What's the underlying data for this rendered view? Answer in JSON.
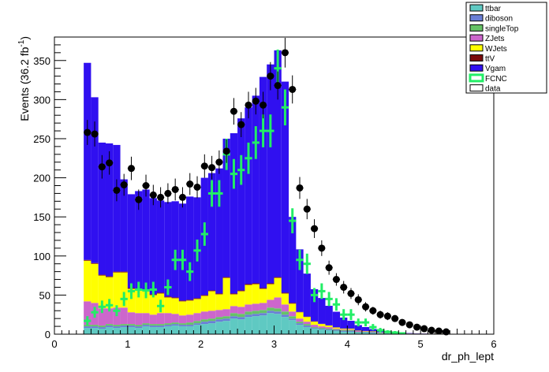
{
  "chart_data": {
    "type": "bar",
    "stacked": true,
    "xlabel": "dr_ph_lept",
    "ylabel": "Events (36.2 fb",
    "ylabel_sup": "-1",
    "ylabel_close": ")",
    "xlim": [
      0,
      6
    ],
    "ylim": [
      0,
      380
    ],
    "xticks": [
      0,
      1,
      2,
      3,
      4,
      5,
      6
    ],
    "yticks": [
      0,
      50,
      100,
      150,
      200,
      250,
      300,
      350
    ],
    "bin_width": 0.1,
    "x": [
      0.45,
      0.55,
      0.65,
      0.75,
      0.85,
      0.95,
      1.05,
      1.15,
      1.25,
      1.35,
      1.45,
      1.55,
      1.65,
      1.75,
      1.85,
      1.95,
      2.05,
      2.15,
      2.25,
      2.35,
      2.45,
      2.55,
      2.65,
      2.75,
      2.85,
      2.95,
      3.05,
      3.15,
      3.25,
      3.35,
      3.45,
      3.55,
      3.65,
      3.75,
      3.85,
      3.95,
      4.05,
      4.15,
      4.25,
      4.35,
      4.45,
      4.55,
      4.65,
      4.75,
      4.85,
      4.95,
      5.05,
      5.15,
      5.25,
      5.35
    ],
    "legend_position": "top-right",
    "series": [
      {
        "name": "ttbar",
        "color": "#5fc9c2",
        "values": [
          8,
          8,
          7,
          9,
          8,
          9,
          9,
          8,
          10,
          9,
          9,
          10,
          11,
          10,
          10,
          12,
          13,
          14,
          16,
          17,
          20,
          19,
          22,
          23,
          24,
          27,
          26,
          22,
          18,
          12,
          9,
          7,
          6,
          5,
          4,
          3,
          3,
          2,
          2,
          1.5,
          1,
          1,
          0.8,
          0.6,
          0.5,
          0.4,
          0.3,
          0.2,
          0.2,
          0.1
        ]
      },
      {
        "name": "diboson",
        "color": "#6a7fd6",
        "values": [
          2,
          2,
          2,
          2,
          2,
          2,
          2,
          2,
          2,
          2,
          2,
          2,
          2,
          2,
          2,
          2,
          3,
          3,
          3,
          3,
          3,
          3,
          3,
          3,
          3,
          3,
          3,
          3,
          2,
          2,
          2,
          1,
          1,
          1,
          1,
          1,
          1,
          0.5,
          0.5,
          0.5,
          0.3,
          0.3,
          0.2,
          0.2,
          0.1,
          0.1,
          0.1,
          0.1,
          0.1,
          0.1
        ]
      },
      {
        "name": "singleTop",
        "color": "#66c266",
        "values": [
          2,
          2,
          2,
          2,
          2,
          2,
          2,
          2,
          2,
          2,
          2,
          2,
          2,
          2,
          3,
          3,
          3,
          3,
          3,
          3,
          4,
          4,
          4,
          4,
          4,
          4,
          4,
          4,
          3,
          2,
          2,
          1,
          1,
          1,
          1,
          1,
          1,
          0.5,
          0.5,
          0.5,
          0.3,
          0.3,
          0.2,
          0.2,
          0.1,
          0.1,
          0.1,
          0.1,
          0.1,
          0.1
        ]
      },
      {
        "name": "ZJets",
        "color": "#cc66cc",
        "values": [
          30,
          28,
          22,
          20,
          22,
          21,
          15,
          15,
          13,
          12,
          14,
          13,
          11,
          10,
          10,
          10,
          10,
          10,
          9,
          9,
          9,
          9,
          9,
          9,
          9,
          10,
          14,
          9,
          6,
          4,
          3,
          3,
          2,
          2,
          1,
          1,
          1,
          1,
          0.5,
          0.5,
          0.3,
          0.3,
          0.2,
          0.2,
          0.1,
          0.1,
          0.1,
          0.1,
          0.1,
          0.1
        ]
      },
      {
        "name": "WJets",
        "color": "#ffff00",
        "values": [
          52,
          50,
          42,
          40,
          45,
          45,
          30,
          30,
          28,
          25,
          25,
          20,
          20,
          18,
          18,
          18,
          20,
          25,
          20,
          40,
          15,
          20,
          25,
          25,
          18,
          20,
          25,
          14,
          10,
          8,
          6,
          4,
          3,
          2,
          1.5,
          1,
          1,
          0.5,
          0.5,
          0.5,
          0.3,
          0.3,
          0.2,
          0.2,
          0.1,
          0.1,
          0.1,
          0.1,
          0.1,
          0.1
        ]
      },
      {
        "name": "ttV",
        "color": "#7a0a0a",
        "values": [
          1,
          1,
          1,
          1,
          1,
          1,
          1,
          1,
          1,
          1,
          1,
          1,
          1,
          1,
          1,
          1,
          1,
          1,
          1,
          1,
          1,
          1,
          1,
          1,
          1,
          1,
          1,
          1,
          1,
          0.5,
          0.5,
          0.5,
          0.3,
          0.3,
          0.2,
          0.2,
          0.1,
          0.1,
          0.1,
          0.1,
          0.1,
          0.1,
          0,
          0,
          0,
          0,
          0,
          0,
          0,
          0
        ]
      },
      {
        "name": "Vgam",
        "color": "#3010f0",
        "values": [
          252,
          212,
          169,
          170,
          162,
          118,
          120,
          125,
          129,
          123,
          118,
          121,
          123,
          124,
          132,
          129,
          150,
          150,
          160,
          177,
          205,
          220,
          226,
          240,
          270,
          280,
          290,
          270,
          110,
          80,
          55,
          41,
          33,
          25,
          20,
          14,
          10,
          7,
          5,
          3,
          2,
          1.5,
          1,
          0.8,
          0.5,
          0.3,
          0.2,
          0.1,
          0,
          0
        ]
      }
    ],
    "data": {
      "name": "data",
      "values": [
        258,
        256,
        214,
        219,
        184,
        191,
        212,
        172,
        190,
        178,
        175,
        180,
        185,
        175,
        192,
        188,
        215,
        213,
        220,
        234,
        285,
        268,
        293,
        298,
        293,
        330,
        318,
        360,
        313,
        187,
        160,
        135,
        110,
        85,
        70,
        60,
        52,
        44,
        35,
        30,
        25,
        23,
        20,
        15,
        12,
        9,
        7,
        5,
        4,
        3
      ],
      "errors": [
        16,
        16,
        15,
        15,
        14,
        14,
        15,
        13,
        14,
        13,
        13,
        13,
        14,
        13,
        14,
        14,
        15,
        15,
        15,
        15,
        17,
        16,
        17,
        17,
        17,
        18,
        18,
        19,
        18,
        14,
        13,
        12,
        10,
        9,
        8,
        8,
        7,
        7,
        6,
        5,
        5,
        5,
        4,
        4,
        3,
        3,
        3,
        2,
        2,
        2
      ]
    },
    "fcnc": {
      "name": "FCNC",
      "color": "#22ee66",
      "x": [
        0.45,
        0.55,
        0.65,
        0.75,
        0.85,
        0.95,
        1.05,
        1.15,
        1.25,
        1.35,
        1.45,
        1.55,
        1.65,
        1.75,
        1.85,
        1.95,
        2.05,
        2.15,
        2.25,
        2.35,
        2.45,
        2.55,
        2.65,
        2.75,
        2.85,
        2.95,
        3.05,
        3.15,
        3.25,
        3.35,
        3.45,
        3.55,
        3.65,
        3.75,
        3.85,
        3.95,
        4.05,
        4.15,
        4.25,
        4.35,
        4.45,
        4.55,
        4.65,
        4.75
      ],
      "values": [
        17,
        28,
        35,
        37,
        30,
        45,
        55,
        57,
        56,
        57,
        36,
        60,
        95,
        95,
        80,
        107,
        128,
        180,
        180,
        230,
        205,
        210,
        225,
        245,
        260,
        260,
        340,
        290,
        145,
        95,
        90,
        50,
        55,
        45,
        38,
        25,
        25,
        15,
        15,
        9,
        5,
        3,
        2,
        1
      ],
      "errors": [
        6,
        7,
        8,
        8,
        7,
        9,
        10,
        10,
        10,
        10,
        8,
        10,
        13,
        13,
        12,
        14,
        15,
        17,
        17,
        20,
        19,
        19,
        20,
        21,
        21,
        21,
        24,
        23,
        16,
        13,
        13,
        9,
        10,
        9,
        8,
        7,
        7,
        5,
        5,
        4,
        3,
        2,
        2,
        1
      ]
    },
    "legend": [
      "ttbar",
      "diboson",
      "singleTop",
      "ZJets",
      "WJets",
      "ttV",
      "Vgam",
      "FCNC",
      "data"
    ]
  }
}
